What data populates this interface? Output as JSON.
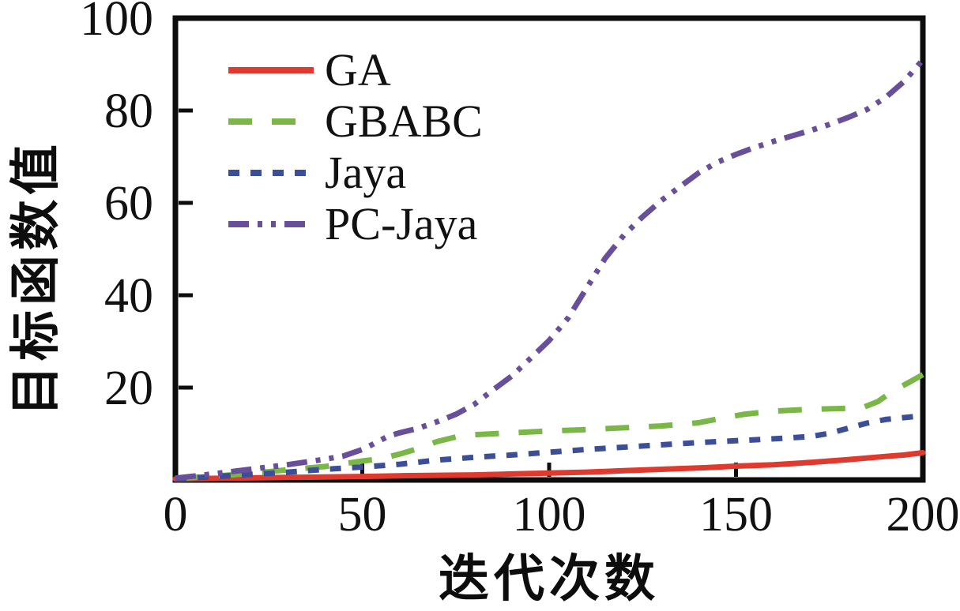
{
  "chart_data": {
    "type": "line",
    "title": "",
    "xlabel": "迭代次数",
    "ylabel": "目标函数值",
    "xlim": [
      0,
      200
    ],
    "ylim": [
      0,
      100
    ],
    "x_ticks": [
      0,
      50,
      100,
      150,
      200
    ],
    "y_ticks": [
      20,
      40,
      60,
      80,
      100
    ],
    "grid": false,
    "legend_position": "inside-top-left",
    "axis_color": "#0d0d0d",
    "text_color": "#111111",
    "series": [
      {
        "name": "GA",
        "color": "#dd3b2f",
        "dash": "solid",
        "x": [
          0,
          10,
          20,
          30,
          40,
          50,
          60,
          70,
          80,
          90,
          100,
          110,
          120,
          130,
          140,
          150,
          160,
          170,
          180,
          190,
          195,
          200
        ],
        "y": [
          0.2,
          0.35,
          0.45,
          0.55,
          0.65,
          0.75,
          0.9,
          1.0,
          1.1,
          1.3,
          1.5,
          1.7,
          2.0,
          2.3,
          2.6,
          3.0,
          3.3,
          3.8,
          4.4,
          5.1,
          5.4,
          5.9
        ]
      },
      {
        "name": "GBABC",
        "color": "#7ab648",
        "dash": "dashed",
        "x": [
          0,
          10,
          20,
          30,
          40,
          50,
          55,
          60,
          65,
          70,
          75,
          80,
          90,
          100,
          110,
          120,
          130,
          140,
          147,
          152,
          160,
          170,
          180,
          184,
          188,
          192,
          196,
          200
        ],
        "y": [
          0.3,
          0.8,
          1.4,
          2.2,
          2.9,
          4.1,
          4.6,
          5.6,
          6.8,
          8.3,
          9.3,
          9.8,
          10.2,
          10.6,
          10.9,
          11.3,
          11.7,
          12.4,
          13.5,
          14.2,
          14.9,
          15.3,
          15.5,
          15.7,
          17.0,
          19.3,
          21.0,
          22.8
        ]
      },
      {
        "name": "Jaya",
        "color": "#3b4e96",
        "dash": "dotted",
        "x": [
          0,
          10,
          20,
          30,
          40,
          50,
          60,
          70,
          80,
          90,
          100,
          110,
          120,
          130,
          140,
          150,
          160,
          170,
          175,
          180,
          185,
          190,
          195,
          200
        ],
        "y": [
          0.3,
          0.7,
          1.2,
          1.7,
          2.3,
          2.8,
          3.4,
          4.3,
          4.9,
          5.4,
          6.0,
          6.6,
          7.1,
          7.6,
          8.1,
          8.5,
          8.9,
          9.4,
          10.1,
          11.2,
          12.3,
          13.1,
          13.5,
          13.9
        ]
      },
      {
        "name": "PC-Jaya",
        "color": "#684f99",
        "dash": "dash-dot-dot",
        "x": [
          0,
          10,
          20,
          30,
          40,
          45,
          50,
          53,
          57,
          60,
          65,
          70,
          75,
          80,
          85,
          90,
          95,
          100,
          105,
          110,
          115,
          120,
          125,
          130,
          135,
          140,
          145,
          150,
          155,
          160,
          165,
          170,
          175,
          180,
          185,
          190,
          195,
          200
        ],
        "y": [
          0.4,
          1.3,
          2.3,
          3.3,
          4.5,
          5.2,
          6.6,
          7.8,
          9.5,
          10.2,
          11.2,
          12.6,
          14.2,
          16.4,
          19.5,
          22.5,
          26.3,
          30.2,
          35.0,
          41.5,
          48.0,
          53.0,
          57.0,
          60.5,
          63.5,
          66.5,
          68.8,
          70.5,
          72.0,
          73.3,
          74.5,
          75.7,
          77.0,
          78.5,
          80.2,
          82.8,
          86.3,
          91.0
        ]
      }
    ]
  },
  "legend": {
    "items": [
      {
        "label": "GA"
      },
      {
        "label": "GBABC"
      },
      {
        "label": "Jaya"
      },
      {
        "label": "PC-Jaya"
      }
    ]
  }
}
